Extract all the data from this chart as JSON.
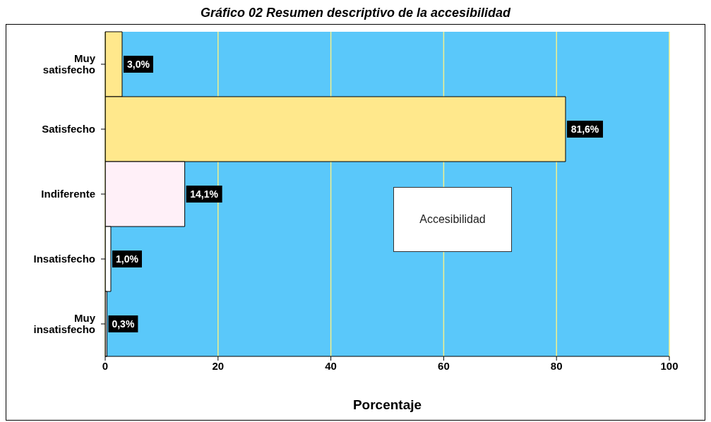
{
  "chart_data": {
    "type": "bar",
    "orientation": "horizontal",
    "title": "Gráfico 02 Resumen descriptivo de la accesibilidad",
    "xlabel": "Porcentaje",
    "categories": [
      "Muy satisfecho",
      "Satisfecho",
      "Indiferente",
      "Insatisfecho",
      "Muy insatisfecho"
    ],
    "values": [
      3.0,
      81.6,
      14.1,
      1.0,
      0.3
    ],
    "colors": [
      "#ffe88c",
      "#ffe88c",
      "#fff0f8",
      "#ffffff",
      "#f4eef4"
    ],
    "value_labels": [
      "3,0%",
      "81,6%",
      "14,1%",
      "1,0%",
      "0,3%"
    ],
    "xlim": [
      0,
      100
    ],
    "xticks": [
      0,
      20,
      40,
      60,
      80,
      100
    ],
    "grid": "x",
    "annotations": [
      "Accesibilidad"
    ]
  }
}
